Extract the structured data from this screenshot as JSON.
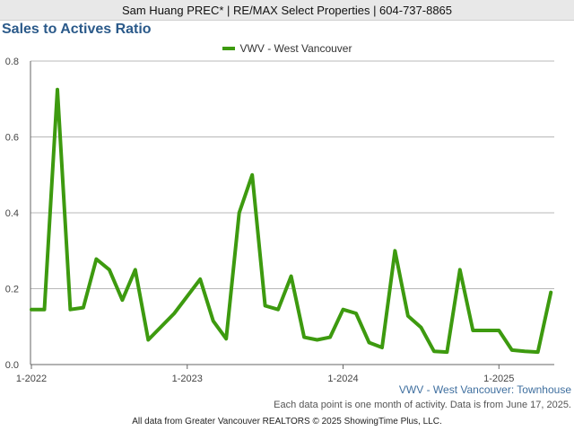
{
  "header": {
    "agent_info": "Sam Huang PREC* | RE/MAX Select Properties | 604-737-8865"
  },
  "chart_data": {
    "type": "line",
    "title": "Sales to Actives Ratio",
    "xlabel": "",
    "ylabel": "",
    "ylim": [
      0,
      0.8
    ],
    "yticks": [
      "0.0",
      "0.2",
      "0.4",
      "0.6",
      "0.8"
    ],
    "xticks": [
      "1-2022",
      "1-2023",
      "1-2024",
      "1-2025"
    ],
    "grid": true,
    "legend_position": "top-center",
    "series": [
      {
        "name": "VWV - West Vancouver",
        "color": "#3d9a0f",
        "x": [
          "2022-01",
          "2022-02",
          "2022-03",
          "2022-04",
          "2022-05",
          "2022-06",
          "2022-07",
          "2022-08",
          "2022-09",
          "2022-10",
          "2022-11",
          "2022-12",
          "2023-01",
          "2023-02",
          "2023-03",
          "2023-04",
          "2023-05",
          "2023-06",
          "2023-07",
          "2023-08",
          "2023-09",
          "2023-10",
          "2023-11",
          "2023-12",
          "2024-01",
          "2024-02",
          "2024-03",
          "2024-04",
          "2024-05",
          "2024-06",
          "2024-07",
          "2024-08",
          "2024-09",
          "2024-10",
          "2024-11",
          "2024-12",
          "2025-01",
          "2025-02",
          "2025-03",
          "2025-04",
          "2025-05"
        ],
        "values": [
          0.145,
          0.145,
          0.725,
          0.145,
          0.15,
          0.278,
          0.25,
          0.17,
          0.25,
          0.065,
          null,
          0.135,
          null,
          0.225,
          0.115,
          0.068,
          0.4,
          0.5,
          0.155,
          0.145,
          0.233,
          0.072,
          0.065,
          0.072,
          0.145,
          0.135,
          0.058,
          0.045,
          0.3,
          0.128,
          0.098,
          0.035,
          0.033,
          0.25,
          0.09,
          0.09,
          0.09,
          0.038,
          0.035,
          0.033,
          0.19
        ]
      }
    ]
  },
  "subtitle": "VWV - West Vancouver: Townhouse",
  "note": "Each data point is one month of activity. Data is from June 17, 2025.",
  "footer": "All data from Greater Vancouver REALTORS © 2025 ShowingTime Plus, LLC."
}
